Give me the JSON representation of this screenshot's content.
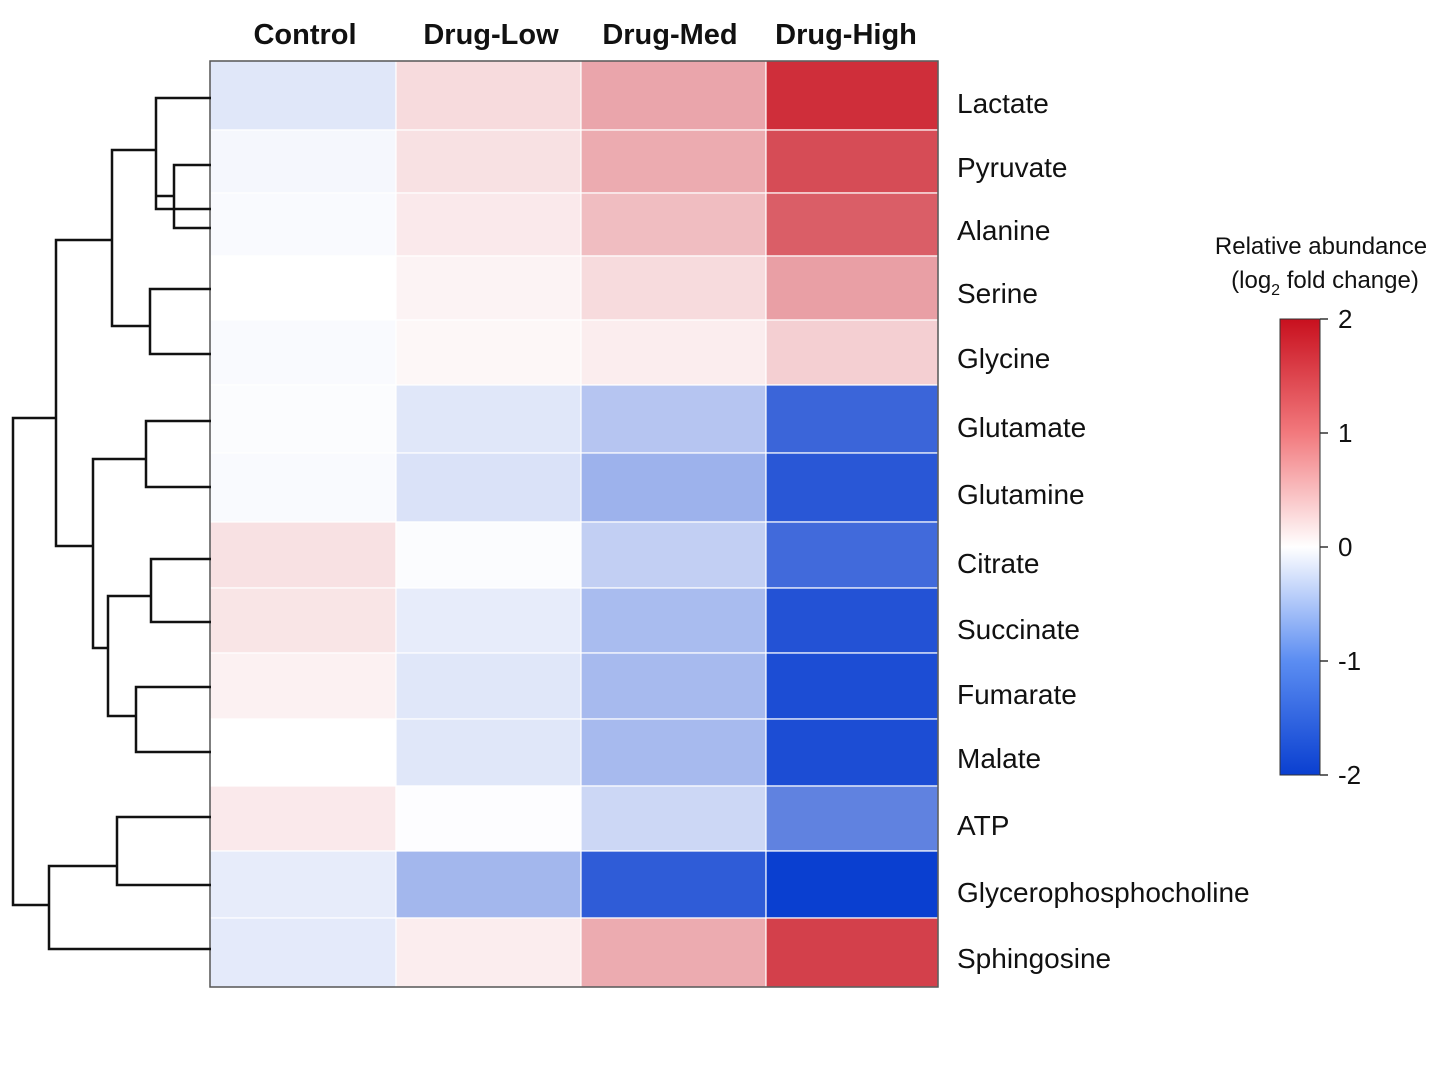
{
  "chart_data": {
    "type": "heatmap",
    "columns": [
      "Control",
      "Drug-Low",
      "Drug-Med",
      "Drug-High"
    ],
    "rows": [
      "Lactate",
      "Pyruvate",
      "Alanine",
      "Serine",
      "Glycine",
      "Glutamate",
      "Glutamine",
      "Citrate",
      "Succinate",
      "Fumarate",
      "Malate",
      "ATP",
      "Glycerophosphocholine",
      "Sphingosine"
    ],
    "values": [
      [
        -0.25,
        0.3,
        0.75,
        1.75
      ],
      [
        -0.08,
        0.25,
        0.7,
        1.5
      ],
      [
        -0.05,
        0.18,
        0.55,
        1.35
      ],
      [
        0.0,
        0.1,
        0.3,
        0.8
      ],
      [
        -0.05,
        0.07,
        0.15,
        0.4
      ],
      [
        -0.03,
        -0.25,
        -0.6,
        -1.6
      ],
      [
        -0.05,
        -0.3,
        -0.8,
        -1.75
      ],
      [
        0.25,
        -0.03,
        -0.5,
        -1.55
      ],
      [
        0.22,
        -0.2,
        -0.7,
        -1.8
      ],
      [
        0.12,
        -0.25,
        -0.72,
        -1.85
      ],
      [
        0.0,
        -0.25,
        -0.72,
        -1.85
      ],
      [
        0.18,
        -0.02,
        -0.42,
        -1.3
      ],
      [
        -0.2,
        -0.75,
        -1.7,
        -2.15
      ],
      [
        -0.22,
        0.15,
        0.7,
        1.6
      ]
    ],
    "colorbar": {
      "title_line1": "Relative abundance",
      "title_line2_prefix": "(log",
      "title_line2_sub": "2",
      "title_line2_suffix": " fold change)",
      "min": -2,
      "max": 2,
      "ticks": [
        "2",
        "1",
        "0",
        "-1",
        "-2"
      ],
      "colors": [
        "#0a3fd0",
        "#ffffff",
        "#c8101e"
      ]
    },
    "dendrogram": "row-clustering-tree"
  }
}
